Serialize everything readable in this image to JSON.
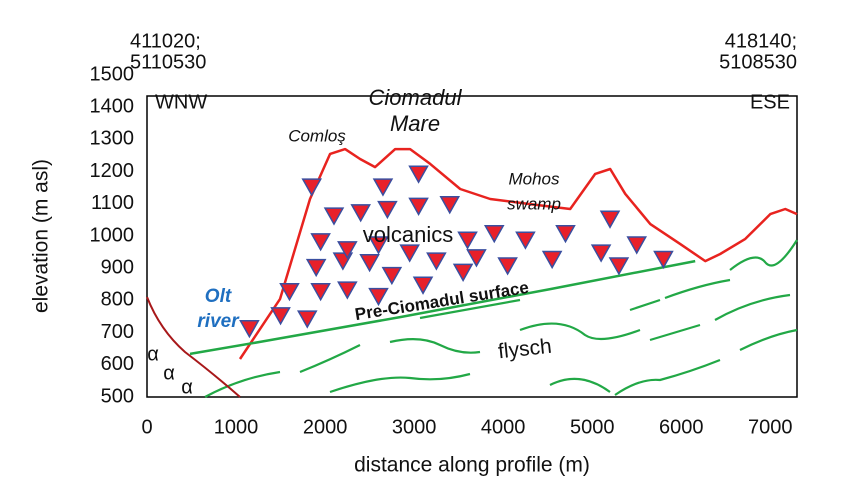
{
  "chart_data": {
    "type": "line",
    "xlabel": "distance along profile (m)",
    "ylabel": "elevation (m asl)",
    "xlim": [
      0,
      7300
    ],
    "ylim": [
      500,
      1500
    ],
    "xticks": [
      0,
      1000,
      2000,
      3000,
      4000,
      5000,
      6000,
      7000
    ],
    "yticks": [
      500,
      600,
      700,
      800,
      900,
      1000,
      1100,
      1200,
      1300,
      1400,
      1500
    ],
    "series": [
      {
        "color": "#e8231f",
        "x": [
          1045,
          1494,
          1831,
          2056,
          2225,
          2393,
          2562,
          2787,
          2955,
          3180,
          3517,
          3854,
          4303,
          4753,
          5034,
          5202,
          5371,
          5652,
          5989,
          6270,
          6438,
          6719,
          7000,
          7169,
          7300
        ],
        "values": [
          618,
          804,
          1115,
          1255,
          1270,
          1239,
          1214,
          1270,
          1270,
          1224,
          1146,
          1115,
          1099,
          1084,
          1193,
          1208,
          1131,
          1037,
          975,
          922,
          944,
          991,
          1068,
          1084,
          1068
        ]
      },
      {
        "color": "#22a846",
        "x": [
          483,
          1270,
          2843,
          4528,
          6157
        ],
        "values": [
          634,
          671,
          748,
          835,
          922
        ]
      },
      {
        "color": "#e8202a",
        "edge": "#3a4fa0",
        "marker": "triangle-down",
        "x": [
          1150,
          1500,
          1800,
          1600,
          1950,
          2250,
          2600,
          1900,
          2200,
          2500,
          2750,
          3100,
          3550,
          1950,
          2250,
          2600,
          2950,
          3250,
          3700,
          4050,
          4550,
          5100,
          2100,
          2400,
          2700,
          3050,
          3400,
          1850,
          2650,
          3050,
          3600,
          3900,
          4250,
          4700,
          5200,
          5500,
          5800,
          5300
        ],
        "values": [
          715,
          755,
          745,
          830,
          830,
          835,
          815,
          905,
          925,
          920,
          880,
          850,
          890,
          985,
          960,
          975,
          950,
          925,
          935,
          910,
          930,
          950,
          1065,
          1075,
          1085,
          1095,
          1100,
          1155,
          1155,
          1195,
          990,
          1010,
          990,
          1010,
          1055,
          975,
          930,
          910
        ]
      }
    ],
    "annotations": [
      "411020;",
      "5110530",
      "418140;",
      "5108530",
      "WNW",
      "ESE",
      "Ciomadul",
      "Mare",
      "Comloş",
      "Mohos",
      "swamp",
      "volcanics",
      "Olt",
      "river",
      "Pre-Ciomadul surface",
      "flysch",
      "α",
      "α",
      "α"
    ]
  }
}
